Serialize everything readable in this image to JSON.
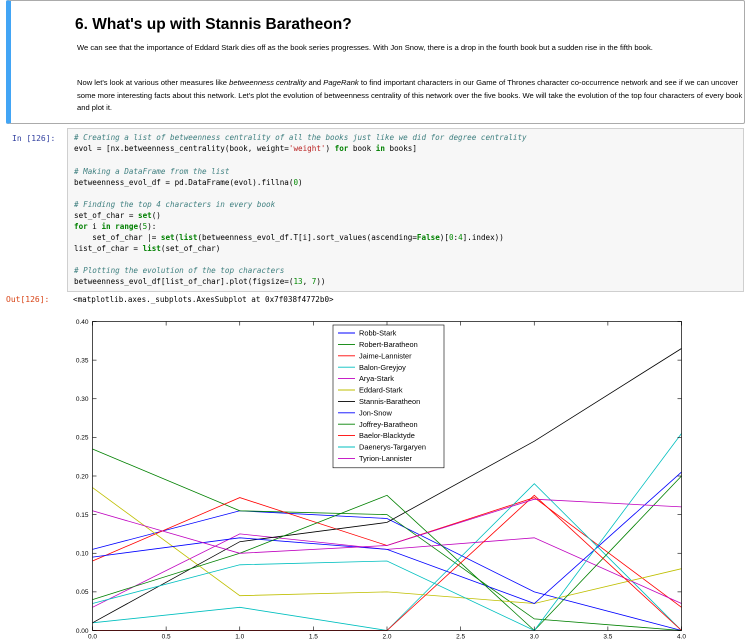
{
  "markdown": {
    "title": "6. What's up with Stannis Baratheon?",
    "para1": "We can see that the importance of Eddard Stark dies off as the book series progresses. With Jon Snow, there is a drop in the fourth book but a sudden rise in the fifth book.",
    "para2_a": "Now let's look at various other measures like ",
    "para2_em1": "betweenness centrality",
    "para2_b": " and ",
    "para2_em2": "PageRank",
    "para2_c": " to find important characters in our Game of Thrones character co-occurrence network and see if we can uncover some more interesting facts about this network. Let's plot the evolution of betweenness centrality of this network over the five books. We will take the evolution of the top four characters of every book and plot it."
  },
  "cell": {
    "in_prompt": "In [126]:",
    "out_prompt": "Out[126]:",
    "output_text": "<matplotlib.axes._subplots.AxesSubplot at 0x7f038f4772b0>"
  },
  "code": {
    "l1": "# Creating a list of betweenness centrality of all the books just like we did for degree centrality",
    "l2a": "evol = [nx.betweenness_centrality(book, weight=",
    "l2s": "'weight'",
    "l2b": ") ",
    "l2k1": "for",
    "l2c": " book ",
    "l2k2": "in",
    "l2d": " books]",
    "l3": "# Making a DataFrame from the list",
    "l4a": "betweenness_evol_df = pd.DataFrame(evol).fillna(",
    "l4n": "0",
    "l4b": ")",
    "l5": "# Finding the top 4 characters in every book",
    "l6a": "set_of_char = ",
    "l6k": "set",
    "l6b": "()",
    "l7k1": "for",
    "l7a": " i ",
    "l7k2": "in",
    "l7b": " ",
    "l7k3": "range",
    "l7c": "(",
    "l7n": "5",
    "l7d": "):",
    "l8a": "    set_of_char |= ",
    "l8k1": "set",
    "l8b": "(",
    "l8k2": "list",
    "l8c": "(betweenness_evol_df.T[i].sort_values(ascending=",
    "l8k3": "False",
    "l8d": ")[",
    "l8n1": "0",
    "l8e": ":",
    "l8n2": "4",
    "l8f": "].index))",
    "l9a": "list_of_char = ",
    "l9k": "list",
    "l9b": "(set_of_char)",
    "l10": "# Plotting the evolution of the top characters",
    "l11a": "betweenness_evol_df[list_of_char].plot(figsize=(",
    "l11n1": "13",
    "l11b": ", ",
    "l11n2": "7",
    "l11c": "))"
  },
  "chart_data": {
    "type": "line",
    "x": [
      0,
      1,
      2,
      3,
      4
    ],
    "xlim": [
      0,
      4
    ],
    "ylim": [
      0,
      0.4
    ],
    "xticks": [
      "0.0",
      "0.5",
      "1.0",
      "1.5",
      "2.0",
      "2.5",
      "3.0",
      "3.5",
      "4.0"
    ],
    "yticks": [
      "0.00",
      "0.05",
      "0.10",
      "0.15",
      "0.20",
      "0.25",
      "0.30",
      "0.35",
      "0.40"
    ],
    "grid": false,
    "legend_position": "top-center",
    "series": [
      {
        "name": "Robb-Stark",
        "color": "#0000ff",
        "values": [
          0.105,
          0.155,
          0.145,
          0.05,
          0.0
        ]
      },
      {
        "name": "Robert-Baratheon",
        "color": "#008000",
        "values": [
          0.235,
          0.155,
          0.15,
          0.015,
          0.0
        ]
      },
      {
        "name": "Jaime-Lannister",
        "color": "#ff0000",
        "values": [
          0.09,
          0.172,
          0.11,
          0.172,
          0.03
        ]
      },
      {
        "name": "Balon-Greyjoy",
        "color": "#00bfbf",
        "values": [
          0.01,
          0.03,
          0.0,
          0.19,
          0.0
        ]
      },
      {
        "name": "Arya-Stark",
        "color": "#bf00bf",
        "values": [
          0.03,
          0.125,
          0.105,
          0.12,
          0.035
        ]
      },
      {
        "name": "Eddard-Stark",
        "color": "#bfbf00",
        "values": [
          0.185,
          0.045,
          0.05,
          0.035,
          0.08
        ]
      },
      {
        "name": "Stannis-Baratheon",
        "color": "#000000",
        "values": [
          0.01,
          0.115,
          0.14,
          0.245,
          0.365
        ]
      },
      {
        "name": "Jon-Snow",
        "color": "#0000ff",
        "values": [
          0.095,
          0.12,
          0.105,
          0.035,
          0.205
        ]
      },
      {
        "name": "Joffrey-Baratheon",
        "color": "#008000",
        "values": [
          0.04,
          0.1,
          0.175,
          0.0,
          0.2
        ]
      },
      {
        "name": "Baelor-Blacktyde",
        "color": "#ff0000",
        "values": [
          0.0,
          0.0,
          0.0,
          0.175,
          0.0
        ]
      },
      {
        "name": "Daenerys-Targaryen",
        "color": "#00bfbf",
        "values": [
          0.035,
          0.085,
          0.09,
          0.0,
          0.255
        ]
      },
      {
        "name": "Tyrion-Lannister",
        "color": "#bf00bf",
        "values": [
          0.155,
          0.1,
          0.11,
          0.17,
          0.16
        ]
      }
    ]
  }
}
